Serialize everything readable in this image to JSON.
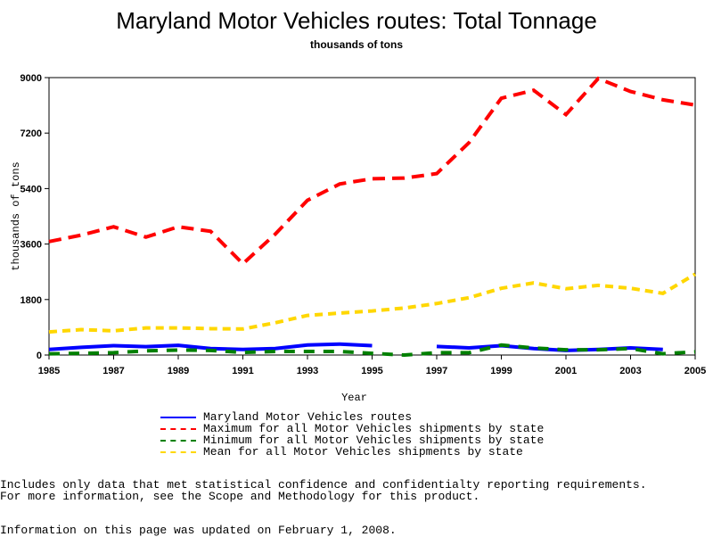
{
  "chart_data": {
    "type": "line",
    "title": "Maryland Motor Vehicles routes: Total Tonnage",
    "subtitle": "thousands of tons",
    "xlabel": "Year",
    "ylabel": "thousands of tons",
    "xlim": [
      1985,
      2005
    ],
    "ylim": [
      0,
      9000
    ],
    "x_ticks": [
      "1985",
      "1987",
      "1989",
      "1991",
      "1993",
      "1995",
      "1997",
      "1999",
      "2001",
      "2003",
      "2005"
    ],
    "y_ticks": [
      "0",
      "1800",
      "3600",
      "5400",
      "7200",
      "9000"
    ],
    "x": [
      1985,
      1986,
      1987,
      1988,
      1989,
      1990,
      1991,
      1992,
      1993,
      1994,
      1995,
      1996,
      1997,
      1998,
      1999,
      2000,
      2001,
      2002,
      2003,
      2004,
      2005
    ],
    "series": [
      {
        "name": "Maryland Motor Vehicles routes",
        "color": "#0000ff",
        "style": "solid",
        "values": [
          180,
          250,
          305,
          270,
          315,
          210,
          180,
          210,
          325,
          355,
          305,
          null,
          280,
          230,
          305,
          210,
          150,
          180,
          230,
          180,
          null
        ]
      },
      {
        "name": "Maximum for all Motor Vehicles shipments by state",
        "color": "#ff0000",
        "style": "dashed",
        "values": [
          3680,
          3890,
          4160,
          3825,
          4160,
          4015,
          2960,
          3920,
          5020,
          5550,
          5720,
          5740,
          5885,
          6890,
          8330,
          8590,
          7800,
          8970,
          8550,
          8280,
          8110
        ]
      },
      {
        "name": "Minimum for all Motor Vehicles shipments by state",
        "color": "#008000",
        "style": "dashed",
        "values": [
          40,
          55,
          75,
          135,
          160,
          150,
          85,
          115,
          115,
          115,
          55,
          0,
          75,
          75,
          325,
          230,
          170,
          170,
          210,
          40,
          105
        ]
      },
      {
        "name": "Mean for all Motor Vehicles shipments by state",
        "color": "#ffd700",
        "style": "dashed",
        "values": [
          750,
          825,
          785,
          880,
          880,
          855,
          845,
          1045,
          1285,
          1360,
          1430,
          1525,
          1670,
          1860,
          2165,
          2340,
          2150,
          2260,
          2165,
          2000,
          2625
        ]
      }
    ],
    "legend_position": "bottom"
  },
  "notes": {
    "line1": "Includes only data that met statistical confidence and confidentialty reporting requirements.",
    "line2": "For more information, see the Scope and Methodology for this product.",
    "updated": "Information on this page was updated on February 1, 2008."
  }
}
